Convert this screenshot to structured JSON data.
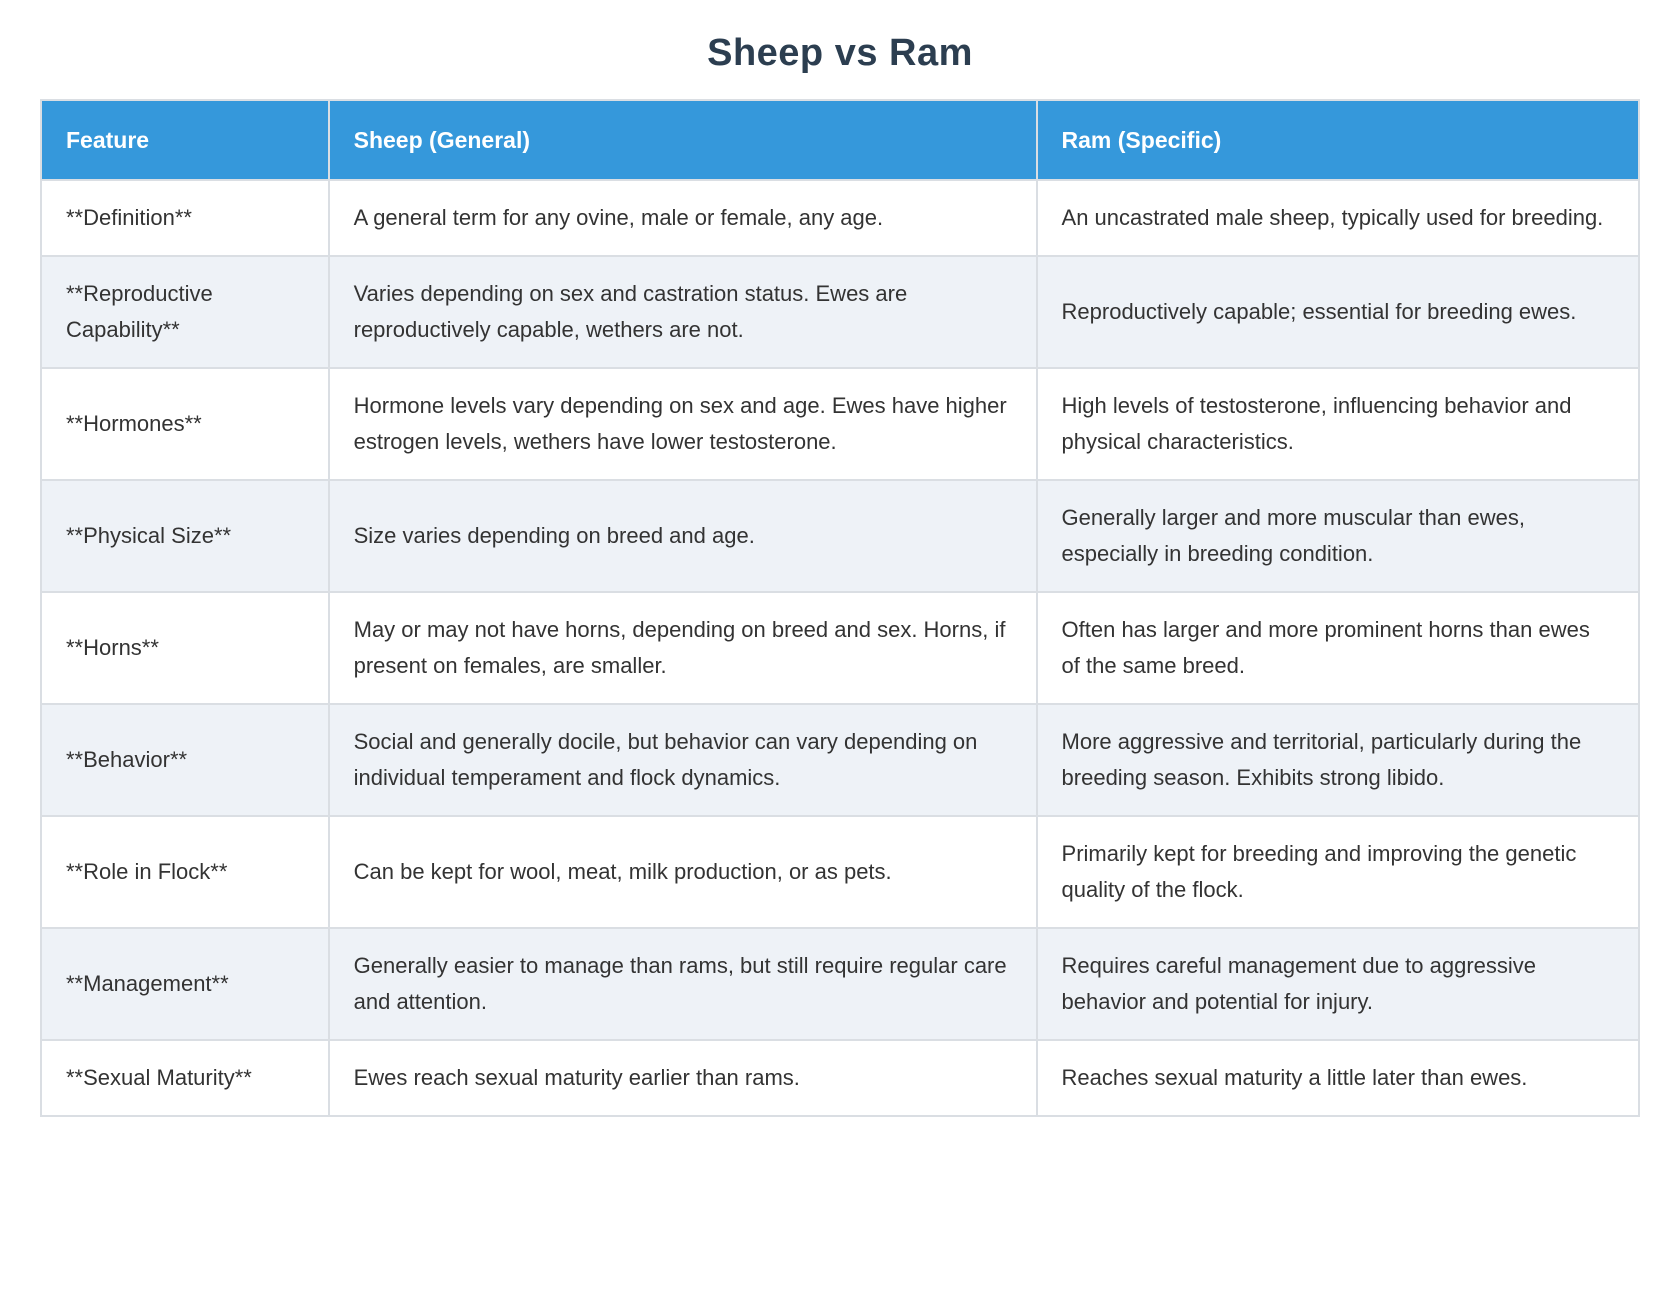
{
  "title": "Sheep vs Ram",
  "colors": {
    "header_bg": "#3598db",
    "header_text": "#ffffff",
    "stripe_bg": "#eef2f7",
    "border": "#dadee3",
    "title_text": "#2c3e50",
    "body_text": "#333333"
  },
  "table": {
    "headers": [
      "Feature",
      "Sheep (General)",
      "Ram (Specific)"
    ],
    "rows": [
      {
        "feature": "**Definition**",
        "sheep": "A general term for any ovine, male or female, any age.",
        "ram": "An uncastrated male sheep, typically used for breeding."
      },
      {
        "feature": "**Reproductive Capability**",
        "sheep": "Varies depending on sex and castration status. Ewes are reproductively capable, wethers are not.",
        "ram": "Reproductively capable; essential for breeding ewes."
      },
      {
        "feature": "**Hormones**",
        "sheep": "Hormone levels vary depending on sex and age. Ewes have higher estrogen levels, wethers have lower testosterone.",
        "ram": "High levels of testosterone, influencing behavior and physical characteristics."
      },
      {
        "feature": "**Physical Size**",
        "sheep": "Size varies depending on breed and age.",
        "ram": "Generally larger and more muscular than ewes, especially in breeding condition."
      },
      {
        "feature": "**Horns**",
        "sheep": "May or may not have horns, depending on breed and sex. Horns, if present on females, are smaller.",
        "ram": "Often has larger and more prominent horns than ewes of the same breed."
      },
      {
        "feature": "**Behavior**",
        "sheep": "Social and generally docile, but behavior can vary depending on individual temperament and flock dynamics.",
        "ram": "More aggressive and territorial, particularly during the breeding season. Exhibits strong libido."
      },
      {
        "feature": "**Role in Flock**",
        "sheep": "Can be kept for wool, meat, milk production, or as pets.",
        "ram": "Primarily kept for breeding and improving the genetic quality of the flock."
      },
      {
        "feature": "**Management**",
        "sheep": "Generally easier to manage than rams, but still require regular care and attention.",
        "ram": "Requires careful management due to aggressive behavior and potential for injury."
      },
      {
        "feature": "**Sexual Maturity**",
        "sheep": "Ewes reach sexual maturity earlier than rams.",
        "ram": "Reaches sexual maturity a little later than ewes."
      }
    ]
  }
}
